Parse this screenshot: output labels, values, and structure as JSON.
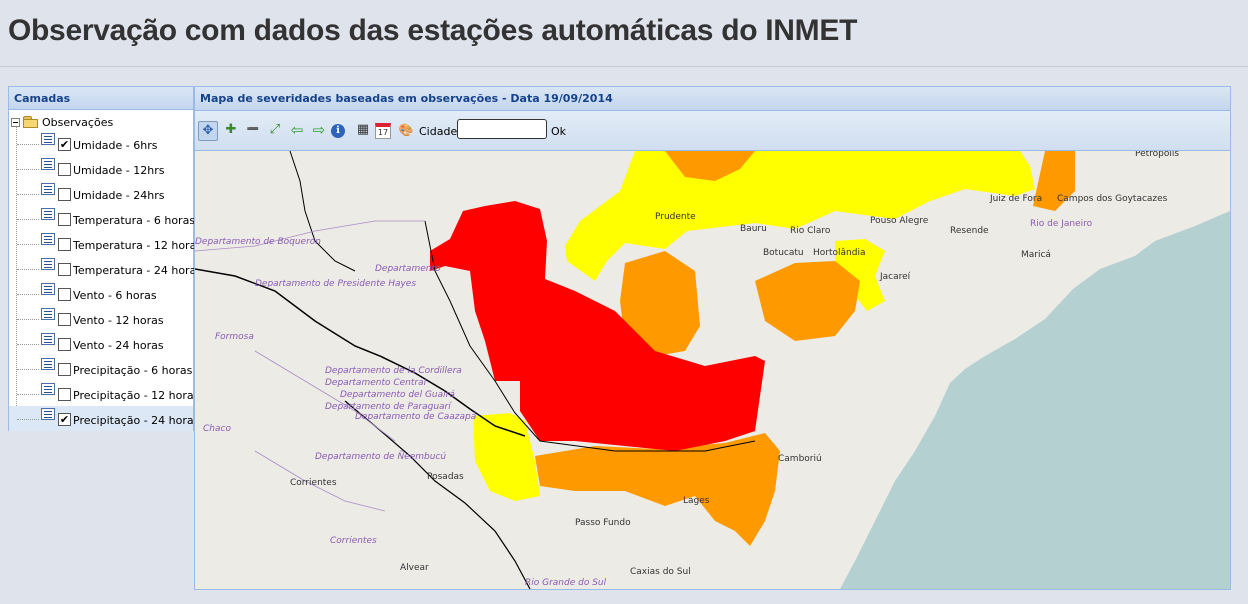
{
  "page": {
    "title": "Observação com dados das estações automáticas do INMET"
  },
  "layers_panel": {
    "header": "Camadas",
    "root_label": "Observações",
    "layers": [
      {
        "label": "Umidade - 6hrs",
        "checked": true,
        "mark": "✔"
      },
      {
        "label": "Umidade - 12hrs",
        "checked": false,
        "mark": ""
      },
      {
        "label": "Umidade - 24hrs",
        "checked": false,
        "mark": ""
      },
      {
        "label": "Temperatura - 6 horas",
        "checked": false,
        "mark": ""
      },
      {
        "label": "Temperatura - 12 horas",
        "checked": false,
        "mark": ""
      },
      {
        "label": "Temperatura - 24 horas",
        "checked": false,
        "mark": ""
      },
      {
        "label": "Vento - 6 horas",
        "checked": false,
        "mark": ""
      },
      {
        "label": "Vento - 12 horas",
        "checked": false,
        "mark": ""
      },
      {
        "label": "Vento - 24 horas",
        "checked": false,
        "mark": ""
      },
      {
        "label": "Precipitação - 6 horas",
        "checked": false,
        "mark": ""
      },
      {
        "label": "Precipitação - 12 horas",
        "checked": false,
        "mark": ""
      },
      {
        "label": "Precipitação - 24 horas",
        "checked": true,
        "mark": "✔"
      }
    ]
  },
  "map_panel": {
    "header": "Mapa de severidades baseadas em observações - Data 19/09/2014",
    "toolbar": {
      "tools": [
        {
          "icon": "pan-icon",
          "glyph": "✥"
        },
        {
          "icon": "zoom-in-icon",
          "glyph": "✚"
        },
        {
          "icon": "zoom-out-icon",
          "glyph": "➖"
        },
        {
          "icon": "zoom-extent-icon",
          "glyph": "⤢"
        },
        {
          "icon": "previous-view-icon",
          "glyph": "⇦"
        },
        {
          "icon": "next-view-icon",
          "glyph": "⇨"
        },
        {
          "icon": "info-icon",
          "glyph": "ℹ"
        },
        {
          "icon": "grid-icon",
          "glyph": "▦"
        },
        {
          "icon": "calendar-icon",
          "glyph": "17"
        },
        {
          "icon": "palette-icon",
          "glyph": "🎨"
        }
      ],
      "city_label": "Cidade:",
      "city_value": "",
      "ok_label": "Ok"
    },
    "map": {
      "colors": {
        "base": "#ecebe6",
        "ocean": "#b5d0d0",
        "severity_red": "#ff0000",
        "severity_orange": "#ff9900",
        "severity_yellow": "#ffff00",
        "border_black": "#000000",
        "place_purple": "#8b5bb5"
      },
      "labels": {
        "juiz_de_fora": "Juiz de Fora",
        "campos": "Campos dos Goytacazes",
        "bauru": "Bauru",
        "rio_claro": "Rio Claro",
        "prudente": "Prudente",
        "botucatu": "Botucatu",
        "hortolandia": "Hortolândia",
        "jacarei": "Jacareí",
        "pouso_alegre": "Pouso Alegre",
        "resende": "Resende",
        "rio_de_janeiro": "Rio de Janeiro",
        "marica": "Maricá",
        "dep_boqueron": "Departamento de Boquerón",
        "dep_pres_hayes": "Departamento de Presidente Hayes",
        "departamento": "Departamento",
        "formosa": "Formosa",
        "dep_cordillera": "Departamento de la Cordillera",
        "dep_central": "Departamento Central",
        "dep_guaira": "Departamento del Guairá",
        "dep_paraguari": "Departamento de Paraguarí",
        "dep_caazapa": "Departamento de Caazapá",
        "chaco": "Chaco",
        "dep_neembucu": "Departamento de Ñeembucú",
        "corrientes_city": "Corrientes",
        "corrientes": "Corrientes",
        "posadas": "Posadas",
        "camboriu": "Camboriú",
        "lages": "Lages",
        "passo_fundo": "Passo Fundo",
        "caxias": "Caxias do Sul",
        "alvear": "Alvear",
        "rio_grande_sul": "Rio Grande do Sul",
        "petropolis": "Petrópolis"
      }
    }
  }
}
